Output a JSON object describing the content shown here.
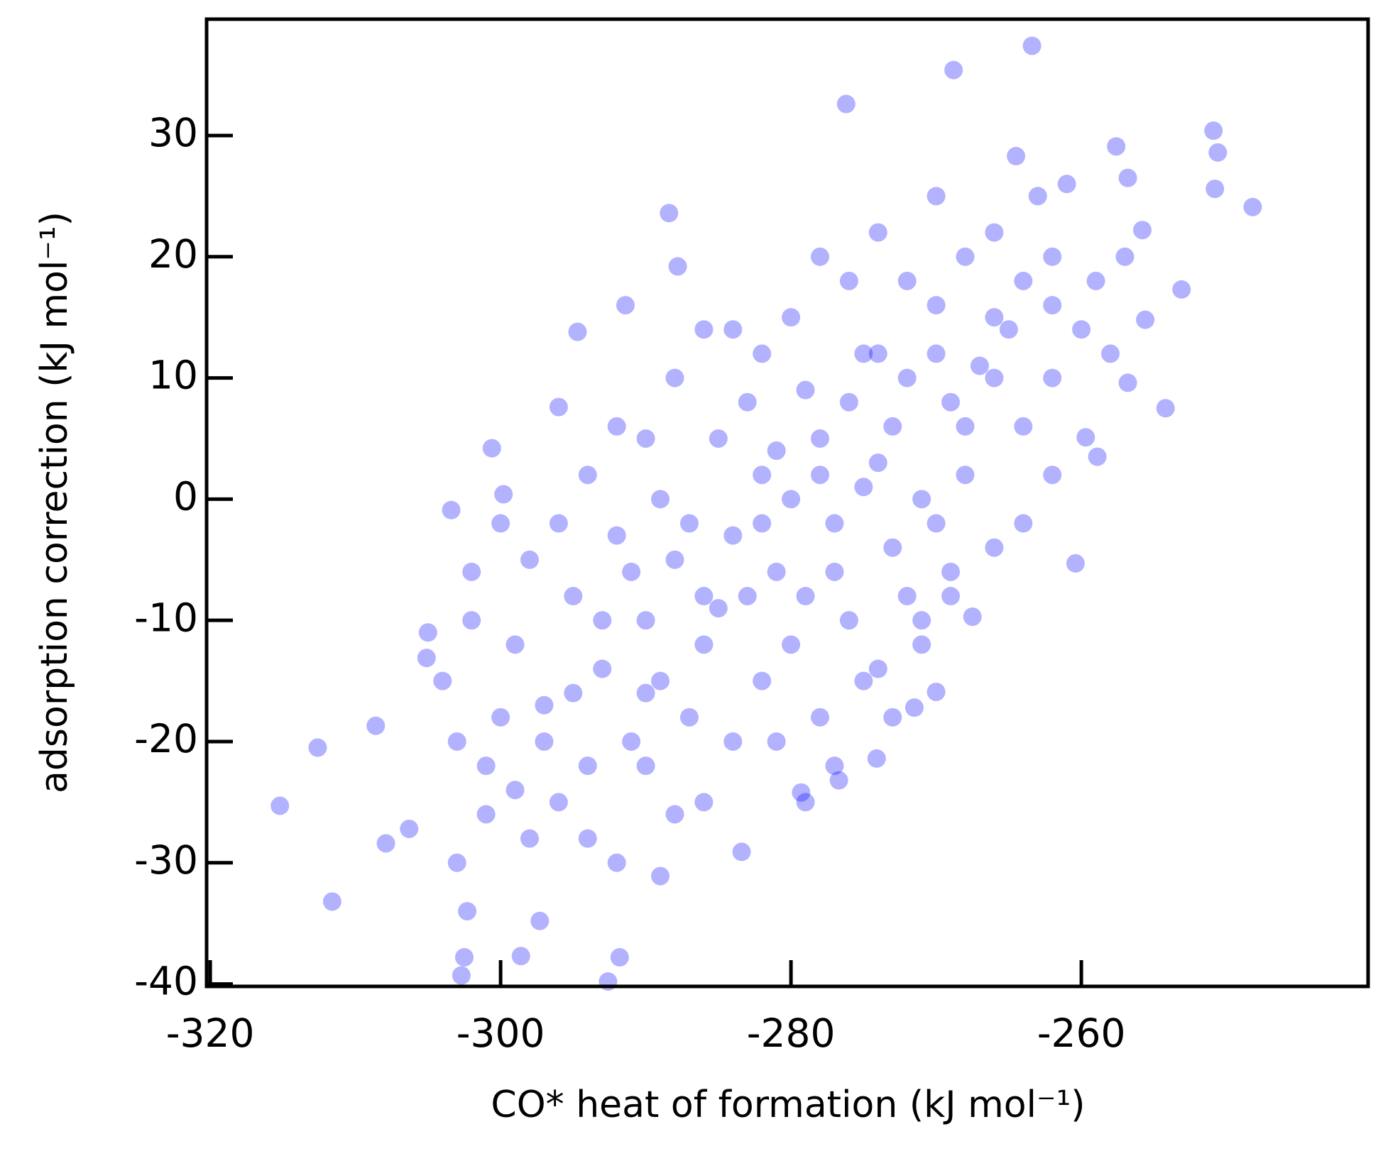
{
  "chart_data": {
    "type": "scatter",
    "xlabel": "CO* heat of formation (kJ mol⁻¹)",
    "ylabel": "adsorption correction (kJ mol⁻¹)",
    "xlim": [
      -320.25,
      -240.25
    ],
    "ylim": [
      -40.2,
      39.6
    ],
    "xticks": [
      -320,
      -300,
      -280,
      -260
    ],
    "yticks": [
      -40,
      -30,
      -20,
      -10,
      0,
      10,
      20,
      30
    ],
    "color": "#0000ff",
    "x": [
      -315.2,
      -312.6,
      -311.6,
      -308.6,
      -307.9,
      -306.3,
      -305.1,
      -303.4,
      -300.6,
      -299.8,
      -302.5,
      -302.7,
      -292.6,
      -291.8,
      -298.6,
      -297.3,
      -302.3,
      -288.4,
      -287.8,
      -276.2,
      -268.8,
      -263.4,
      -250.9,
      -250.6,
      -248.2,
      -250.8,
      -253.1,
      -254.2,
      -255.6,
      -256.8,
      -258.9,
      -259.7,
      -260.4,
      -267.5,
      -270.0,
      -271.5,
      -274.1,
      -276.7,
      -279.3,
      -283.4,
      -289.0,
      -291.4,
      -294.7,
      -296.0,
      -264.5,
      -257.6,
      -256.8,
      -255.8,
      -290,
      -288,
      -286,
      -284,
      -282,
      -280,
      -278,
      -276,
      -274,
      -272,
      -270,
      -268,
      -266,
      -264,
      -262,
      -285,
      -283,
      -281,
      -279,
      -277,
      -275,
      -273,
      -271,
      -269,
      -287,
      -289,
      -291,
      -293,
      -295,
      -297,
      -299,
      -301,
      -303,
      -296,
      -294,
      -292,
      -290,
      -288,
      -286,
      -284,
      -282,
      -280,
      -278,
      -276,
      -274,
      -272,
      -270,
      -268,
      -266,
      -264,
      -262,
      -260,
      -262,
      -264,
      -266,
      -268,
      -270,
      -272,
      -274,
      -276,
      -278,
      -280,
      -282,
      -284,
      -286,
      -288,
      -290,
      -292,
      -298,
      -300,
      -302,
      -298,
      -296,
      -294,
      -292,
      -283,
      -281,
      -279,
      -277,
      -275,
      -273,
      -271,
      -269,
      -267,
      -265,
      -263,
      -261,
      -259,
      -257,
      -285,
      -287,
      -289,
      -291,
      -293,
      -295,
      -297,
      -299,
      -301,
      -303,
      -304,
      -305,
      -302,
      -300,
      -294,
      -290,
      -286,
      -282,
      -278,
      -274,
      -270,
      -266,
      -262,
      -258,
      -281,
      -279,
      -277,
      -275,
      -273,
      -271,
      -269
    ],
    "values": [
      -25.3,
      -20.5,
      -33.2,
      -18.7,
      -28.4,
      -27.2,
      -13.1,
      -0.9,
      4.2,
      0.4,
      -37.8,
      -39.3,
      -39.8,
      -37.8,
      -37.7,
      -34.8,
      -34.0,
      23.6,
      19.2,
      32.6,
      35.4,
      37.4,
      30.4,
      28.6,
      24.1,
      25.6,
      17.3,
      7.5,
      14.8,
      9.6,
      3.5,
      5.1,
      -5.3,
      -9.7,
      -15.9,
      -17.2,
      -21.4,
      -23.2,
      -24.2,
      -29.1,
      -31.1,
      16.0,
      13.8,
      7.6,
      28.3,
      29.1,
      26.5,
      22.2,
      -10,
      -5,
      -12,
      -3,
      2,
      0,
      5,
      8,
      3,
      10,
      12,
      6,
      15,
      18,
      20,
      5,
      8,
      -6,
      -8,
      -2,
      12,
      -4,
      0,
      -6,
      -18,
      -15,
      -20,
      -14,
      -8,
      -17,
      -12,
      -22,
      -20,
      -25,
      -28,
      -3,
      5,
      10,
      14,
      -20,
      -15,
      -12,
      -18,
      -10,
      -14,
      -8,
      -2,
      2,
      -4,
      6,
      10,
      14,
      2,
      -2,
      22,
      20,
      25,
      18,
      22,
      18,
      20,
      15,
      12,
      14,
      -25,
      -26,
      -22,
      -30,
      -28,
      -18,
      -10,
      -5,
      -2,
      2,
      6,
      -8,
      4,
      9,
      -6,
      1,
      6,
      -10,
      8,
      11,
      14,
      25,
      26,
      18,
      20,
      -9,
      -2,
      0,
      -6,
      -10,
      -16,
      -20,
      -24,
      -26,
      -30,
      -15,
      -11,
      -6,
      -2,
      -22,
      -16,
      -8,
      -2,
      2,
      12,
      16,
      10,
      16,
      12,
      -20,
      -25,
      -22,
      -15,
      -18,
      -12,
      -8
    ]
  }
}
